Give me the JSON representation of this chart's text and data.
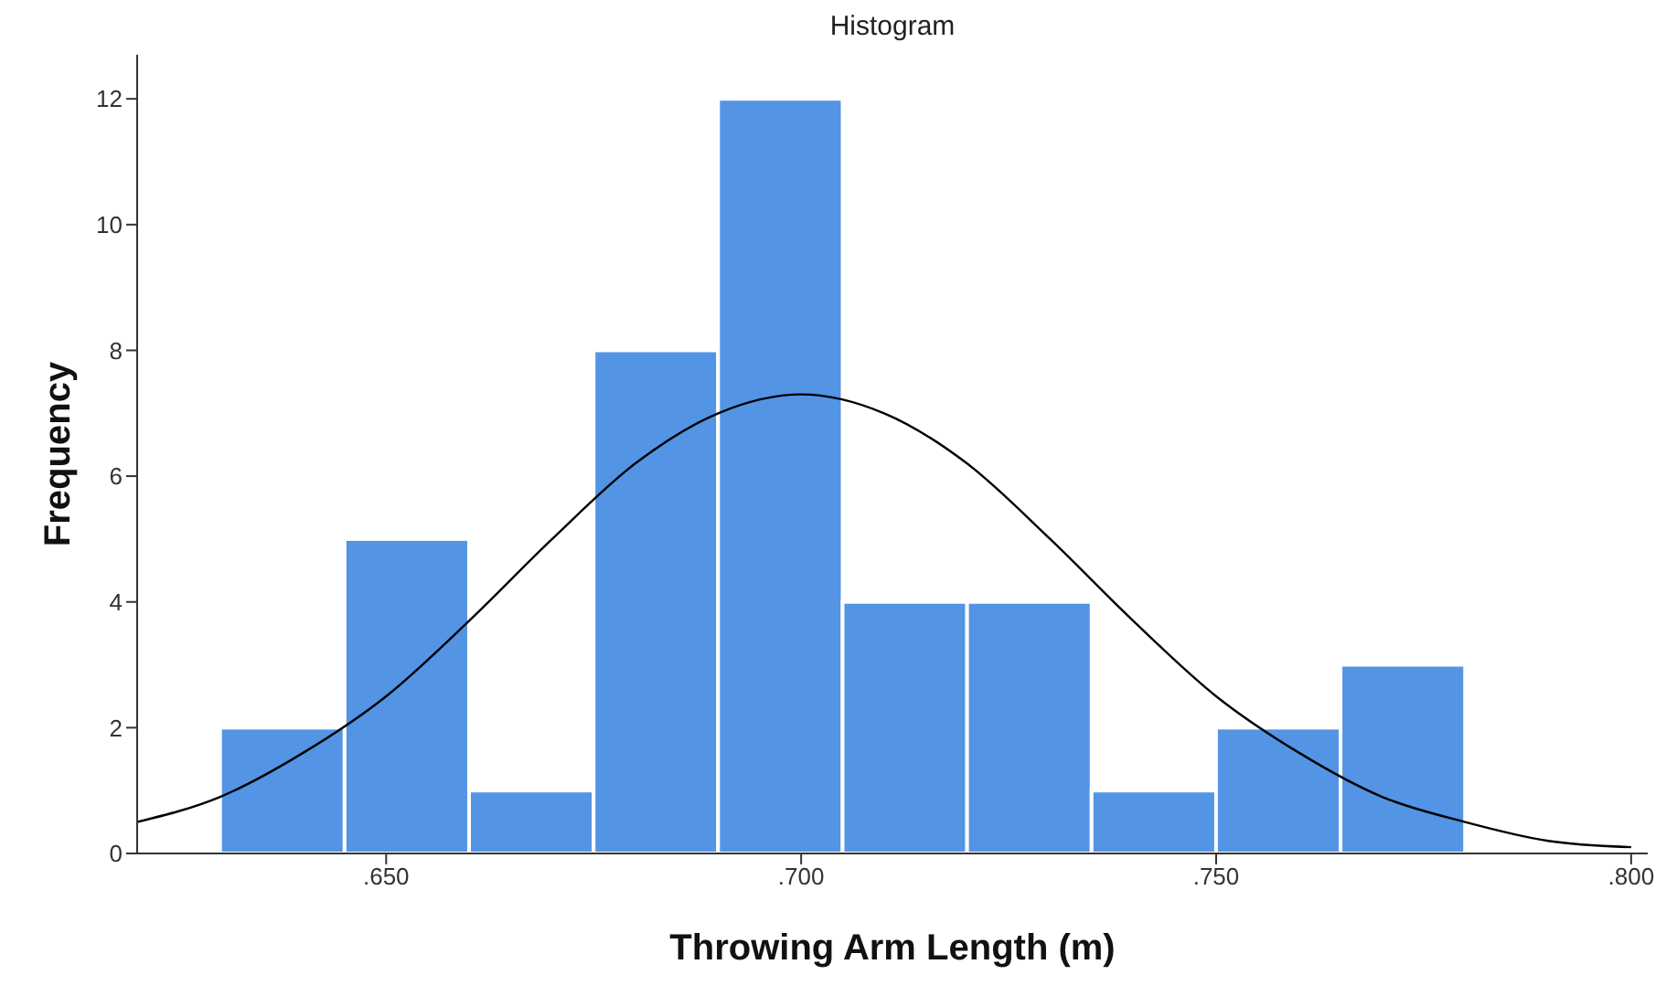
{
  "chart_data": {
    "type": "histogram",
    "title": "Histogram",
    "xlabel": "Throwing Arm Length (m)",
    "ylabel": "Frequency",
    "bins": [
      0.63,
      0.645,
      0.66,
      0.675,
      0.69,
      0.705,
      0.72,
      0.735,
      0.75,
      0.765,
      0.78
    ],
    "values": [
      2,
      5,
      1,
      8,
      12,
      4,
      4,
      1,
      2,
      3
    ],
    "color": "#5394e5",
    "series": [
      {
        "type": "line",
        "color": "#000000",
        "x": [
          0.62,
          0.63,
          0.64,
          0.65,
          0.66,
          0.67,
          0.68,
          0.69,
          0.7,
          0.71,
          0.72,
          0.73,
          0.74,
          0.75,
          0.76,
          0.77,
          0.78,
          0.79,
          0.8
        ],
        "values": [
          0.5,
          0.9,
          1.6,
          2.5,
          3.7,
          5.0,
          6.2,
          7.0,
          7.3,
          7.0,
          6.2,
          5.0,
          3.7,
          2.5,
          1.6,
          0.9,
          0.5,
          0.2,
          0.1
        ]
      }
    ],
    "marker": "none",
    "grid": false,
    "legend": false,
    "xlim": [
      0.62,
      0.802
    ],
    "xticks": [
      {
        "value": 0.65,
        "label": ".650"
      },
      {
        "value": 0.7,
        "label": ".700"
      },
      {
        "value": 0.75,
        "label": ".750"
      },
      {
        "value": 0.8,
        "label": ".800"
      }
    ],
    "ylim": [
      0,
      12.7
    ],
    "yticks": [
      0,
      2,
      4,
      6,
      8,
      10,
      12
    ]
  }
}
